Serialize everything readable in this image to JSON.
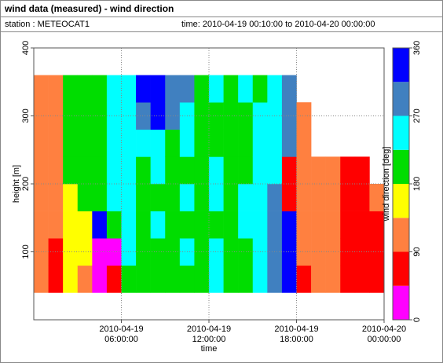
{
  "chart_data": {
    "type": "heatmap",
    "title": "wind data (measured) - wind direction",
    "station": "station : METEOCAT1",
    "time_range": "time: 2010-04-19 00:10:00 to 2010-04-20 00:00:00",
    "xlabel": "time",
    "ylabel": "height [m]",
    "colorbar_label": "wind direction [deg]",
    "xlim": [
      0,
      24
    ],
    "xticks": [
      {
        "value": 6,
        "label": "2010-04-19 06:00:00"
      },
      {
        "value": 12,
        "label": "2010-04-19 12:00:00"
      },
      {
        "value": 18,
        "label": "2010-04-19 18:00:00"
      },
      {
        "value": 24,
        "label": "2010-04-20 00:00:00"
      }
    ],
    "ylim": [
      0,
      400
    ],
    "yticks": [
      100,
      200,
      300,
      400
    ],
    "grid": true,
    "x": [
      0.5,
      1.5,
      2.5,
      3.5,
      4.5,
      5.5,
      6.5,
      7.5,
      8.5,
      9.5,
      10.5,
      11.5,
      12.5,
      13.5,
      14.5,
      15.5,
      16.5,
      17.5,
      18.5,
      19.5,
      20.5,
      21.5,
      22.5,
      23.5
    ],
    "y": [
      60,
      100,
      140,
      180,
      220,
      260,
      300,
      340
    ],
    "values": [
      [
        112,
        112,
        112,
        112,
        112,
        112,
        112,
        112
      ],
      [
        70,
        70,
        112,
        112,
        112,
        112,
        112,
        112
      ],
      [
        160,
        160,
        160,
        160,
        200,
        200,
        200,
        200
      ],
      [
        112,
        160,
        160,
        200,
        200,
        200,
        200,
        200
      ],
      [
        20,
        20,
        330,
        200,
        200,
        200,
        200,
        200
      ],
      [
        70,
        20,
        200,
        250,
        250,
        250,
        250,
        250
      ],
      [
        200,
        250,
        250,
        250,
        250,
        250,
        250,
        250
      ],
      [
        200,
        200,
        200,
        200,
        200,
        250,
        290,
        330
      ],
      [
        200,
        200,
        250,
        200,
        250,
        250,
        330,
        330
      ],
      [
        200,
        200,
        200,
        200,
        200,
        200,
        290,
        290
      ],
      [
        200,
        250,
        200,
        250,
        200,
        250,
        250,
        290
      ],
      [
        200,
        200,
        200,
        200,
        200,
        200,
        200,
        200
      ],
      [
        250,
        250,
        200,
        250,
        250,
        200,
        200,
        250
      ],
      [
        200,
        200,
        200,
        200,
        200,
        200,
        200,
        200
      ],
      [
        200,
        200,
        250,
        250,
        200,
        200,
        200,
        250
      ],
      [
        250,
        250,
        250,
        250,
        250,
        250,
        250,
        200
      ],
      [
        290,
        290,
        290,
        290,
        250,
        250,
        250,
        250
      ],
      [
        330,
        330,
        330,
        70,
        70,
        290,
        290,
        290
      ],
      [
        70,
        112,
        112,
        112,
        112,
        112,
        112,
        null
      ],
      [
        112,
        112,
        112,
        112,
        112,
        null,
        null,
        null
      ],
      [
        112,
        112,
        112,
        112,
        112,
        null,
        null,
        null
      ],
      [
        70,
        70,
        70,
        70,
        70,
        null,
        null,
        null
      ],
      [
        70,
        70,
        70,
        70,
        70,
        null,
        null,
        null
      ],
      [
        70,
        70,
        70,
        112,
        null,
        null,
        null,
        null
      ]
    ],
    "colorscale": {
      "bounds": [
        0,
        45,
        90,
        135,
        180,
        225,
        270,
        315,
        360
      ],
      "colors": [
        "#ff00ff",
        "#ff0000",
        "#ff8040",
        "#ffff00",
        "#00dd00",
        "#00ffff",
        "#4080c0",
        "#0000ff"
      ]
    },
    "clim": [
      0,
      360
    ],
    "cticks": [
      0,
      90,
      180,
      270,
      360
    ]
  }
}
